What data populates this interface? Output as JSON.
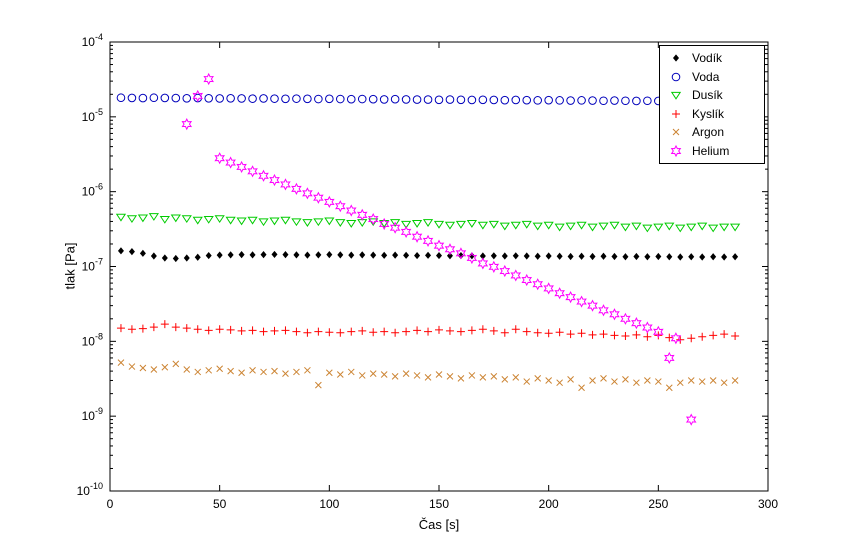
{
  "chart_data": {
    "type": "scatter",
    "title": "",
    "xlabel": "Čas [s]",
    "ylabel": "tlak [Pa]",
    "xlim": [
      0,
      300
    ],
    "xticks": [
      0,
      50,
      100,
      150,
      200,
      250,
      300
    ],
    "ylog_exponents": [
      -10,
      -9,
      -8,
      -7,
      -6,
      -5,
      -4
    ],
    "grid": false,
    "legend_position": "northeast",
    "x": [
      5,
      10,
      15,
      20,
      25,
      30,
      35,
      40,
      45,
      50,
      55,
      60,
      65,
      70,
      75,
      80,
      85,
      90,
      95,
      100,
      105,
      110,
      115,
      120,
      125,
      130,
      135,
      140,
      145,
      150,
      155,
      160,
      165,
      170,
      175,
      180,
      185,
      190,
      195,
      200,
      205,
      210,
      215,
      220,
      225,
      230,
      235,
      240,
      245,
      250,
      255,
      260,
      265,
      270,
      275,
      280,
      285
    ],
    "series": [
      {
        "id": "vodik",
        "name": "Vodík",
        "marker": "diamond",
        "color": "#000000",
        "y": [
          1.62e-07,
          1.58e-07,
          1.5e-07,
          1.38e-07,
          1.3e-07,
          1.28e-07,
          1.3e-07,
          1.33e-07,
          1.4e-07,
          1.42e-07,
          1.43e-07,
          1.44e-07,
          1.43e-07,
          1.44e-07,
          1.45e-07,
          1.44e-07,
          1.43e-07,
          1.42e-07,
          1.43e-07,
          1.44e-07,
          1.43e-07,
          1.42e-07,
          1.43e-07,
          1.42e-07,
          1.41e-07,
          1.42e-07,
          1.41e-07,
          1.4e-07,
          1.41e-07,
          1.4e-07,
          1.39e-07,
          1.4e-07,
          1.39e-07,
          1.38e-07,
          1.39e-07,
          1.38e-07,
          1.39e-07,
          1.38e-07,
          1.37e-07,
          1.38e-07,
          1.37e-07,
          1.36e-07,
          1.37e-07,
          1.36e-07,
          1.37e-07,
          1.36e-07,
          1.35e-07,
          1.36e-07,
          1.35e-07,
          1.36e-07,
          1.35e-07,
          1.34e-07,
          1.35e-07,
          1.34e-07,
          1.35e-07,
          1.34e-07,
          1.35e-07
        ]
      },
      {
        "id": "voda",
        "name": "Voda",
        "marker": "circle",
        "color": "#0000bb",
        "y": [
          1.8e-05,
          1.79e-05,
          1.78e-05,
          1.8e-05,
          1.79e-05,
          1.78e-05,
          1.77e-05,
          1.78e-05,
          1.77e-05,
          1.76e-05,
          1.77e-05,
          1.76e-05,
          1.75e-05,
          1.76e-05,
          1.75e-05,
          1.74e-05,
          1.75e-05,
          1.74e-05,
          1.73e-05,
          1.74e-05,
          1.73e-05,
          1.72e-05,
          1.73e-05,
          1.72e-05,
          1.71e-05,
          1.72e-05,
          1.71e-05,
          1.7e-05,
          1.7e-05,
          1.69e-05,
          1.7e-05,
          1.69e-05,
          1.68e-05,
          1.69e-05,
          1.68e-05,
          1.67e-05,
          1.68e-05,
          1.67e-05,
          1.66e-05,
          1.67e-05,
          1.66e-05,
          1.65e-05,
          1.66e-05,
          1.65e-05,
          1.64e-05,
          1.65e-05,
          1.64e-05,
          1.63e-05,
          1.64e-05,
          1.63e-05,
          1.62e-05,
          1.63e-05,
          1.62e-05,
          1.61e-05,
          1.62e-05,
          1.61e-05,
          1.6e-05
        ]
      },
      {
        "id": "dusik",
        "name": "Dusík",
        "marker": "triangle-down",
        "color": "#00cc00",
        "y": [
          4.6e-07,
          4.4e-07,
          4.5e-07,
          4.7e-07,
          4.3e-07,
          4.5e-07,
          4.4e-07,
          4.2e-07,
          4.3e-07,
          4.4e-07,
          4.2e-07,
          4.1e-07,
          4.2e-07,
          4e-07,
          4.1e-07,
          4.2e-07,
          4e-07,
          3.9e-07,
          4e-07,
          4.1e-07,
          3.9e-07,
          3.8e-07,
          3.9e-07,
          4e-07,
          3.8e-07,
          3.9e-07,
          3.7e-07,
          3.8e-07,
          3.9e-07,
          3.7e-07,
          3.6e-07,
          3.7e-07,
          3.8e-07,
          3.6e-07,
          3.7e-07,
          3.5e-07,
          3.6e-07,
          3.7e-07,
          3.5e-07,
          3.6e-07,
          3.4e-07,
          3.5e-07,
          3.6e-07,
          3.4e-07,
          3.5e-07,
          3.6e-07,
          3.4e-07,
          3.5e-07,
          3.3e-07,
          3.4e-07,
          3.5e-07,
          3.3e-07,
          3.4e-07,
          3.5e-07,
          3.3e-07,
          3.4e-07,
          3.4e-07
        ]
      },
      {
        "id": "kyslik",
        "name": "Kyslík",
        "marker": "plus",
        "color": "#ff0000",
        "y": [
          1.5e-08,
          1.45e-08,
          1.48e-08,
          1.55e-08,
          1.7e-08,
          1.55e-08,
          1.5e-08,
          1.45e-08,
          1.4e-08,
          1.45e-08,
          1.42e-08,
          1.38e-08,
          1.4e-08,
          1.35e-08,
          1.38e-08,
          1.4e-08,
          1.35e-08,
          1.3e-08,
          1.35e-08,
          1.32e-08,
          1.3e-08,
          1.35e-08,
          1.38e-08,
          1.32e-08,
          1.35e-08,
          1.3e-08,
          1.35e-08,
          1.4e-08,
          1.35e-08,
          1.42e-08,
          1.38e-08,
          1.35e-08,
          1.4e-08,
          1.45e-08,
          1.38e-08,
          1.3e-08,
          1.45e-08,
          1.35e-08,
          1.3e-08,
          1.28e-08,
          1.32e-08,
          1.25e-08,
          1.28e-08,
          1.22e-08,
          1.25e-08,
          1.2e-08,
          1.18e-08,
          1.22e-08,
          1.15e-08,
          1.2e-08,
          1.12e-08,
          1.05e-08,
          1.1e-08,
          1.15e-08,
          1.2e-08,
          1.25e-08,
          1.18e-08
        ]
      },
      {
        "id": "argon",
        "name": "Argon",
        "marker": "x",
        "color": "#cc8433",
        "y": [
          5.2e-09,
          4.6e-09,
          4.4e-09,
          4.2e-09,
          4.5e-09,
          5e-09,
          4.2e-09,
          3.9e-09,
          4.1e-09,
          4.3e-09,
          4e-09,
          3.8e-09,
          4.1e-09,
          3.9e-09,
          4e-09,
          3.7e-09,
          3.9e-09,
          4.1e-09,
          2.6e-09,
          3.8e-09,
          3.6e-09,
          3.9e-09,
          3.5e-09,
          3.7e-09,
          3.6e-09,
          3.4e-09,
          3.7e-09,
          3.5e-09,
          3.3e-09,
          3.6e-09,
          3.4e-09,
          3.2e-09,
          3.5e-09,
          3.3e-09,
          3.4e-09,
          3.1e-09,
          3.3e-09,
          2.9e-09,
          3.2e-09,
          3e-09,
          2.8e-09,
          3.1e-09,
          2.4e-09,
          3e-09,
          3.2e-09,
          2.9e-09,
          3.1e-09,
          2.8e-09,
          3e-09,
          2.9e-09,
          2.4e-09,
          2.8e-09,
          3e-09,
          2.9e-09,
          3e-09,
          2.8e-09,
          3e-09
        ]
      },
      {
        "id": "helium",
        "name": "Helium",
        "marker": "hexagram",
        "color": "#ff00ff",
        "x": [
          35,
          40,
          45,
          50,
          55,
          60,
          65,
          70,
          75,
          80,
          85,
          90,
          95,
          100,
          105,
          110,
          115,
          120,
          125,
          130,
          135,
          140,
          145,
          150,
          155,
          160,
          165,
          170,
          175,
          180,
          185,
          190,
          195,
          200,
          205,
          210,
          215,
          220,
          225,
          230,
          235,
          240,
          245,
          250,
          255,
          258,
          265
        ],
        "y": [
          8e-06,
          1.9e-05,
          3.2e-05,
          2.8e-06,
          2.45e-06,
          2.14e-06,
          1.87e-06,
          1.63e-06,
          1.43e-06,
          1.25e-06,
          1.09e-06,
          9.5e-07,
          8.3e-07,
          7.3e-07,
          6.4e-07,
          5.6e-07,
          4.9e-07,
          4.3e-07,
          3.7e-07,
          3.3e-07,
          2.9e-07,
          2.5e-07,
          2.2e-07,
          1.9e-07,
          1.7e-07,
          1.5e-07,
          1.3e-07,
          1.1e-07,
          9.9e-08,
          8.7e-08,
          7.6e-08,
          6.6e-08,
          5.8e-08,
          5.1e-08,
          4.4e-08,
          3.9e-08,
          3.4e-08,
          3e-08,
          2.6e-08,
          2.3e-08,
          2e-08,
          1.75e-08,
          1.53e-08,
          1.34e-08,
          6e-09,
          1.1e-08,
          9e-10
        ]
      }
    ]
  }
}
